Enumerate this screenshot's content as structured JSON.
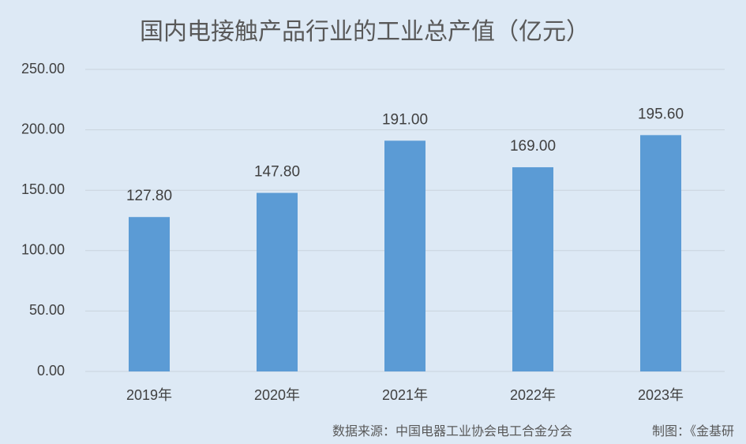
{
  "chart_data": {
    "type": "bar",
    "title": "国内电接触产品行业的工业总产值（亿元）",
    "categories": [
      "2019年",
      "2020年",
      "2021年",
      "2022年",
      "2023年"
    ],
    "values": [
      127.8,
      147.8,
      191,
      169,
      195.6
    ],
    "value_labels": [
      "127.80",
      "147.80",
      "191.00",
      "169.00",
      "195.60"
    ],
    "color": "#5b9bd5",
    "ylim": [
      0,
      250
    ],
    "yticks": [
      {
        "value": 0,
        "label": "0.00"
      },
      {
        "value": 50,
        "label": "50.00"
      },
      {
        "value": 100,
        "label": "100.00"
      },
      {
        "value": 150,
        "label": "150.00"
      },
      {
        "value": 200,
        "label": "200.00"
      },
      {
        "value": 250,
        "label": "250.00"
      }
    ],
    "grid": true,
    "source": "数据来源：中国电器工业协会电工合金分会",
    "credit": "制图：《金基研"
  }
}
